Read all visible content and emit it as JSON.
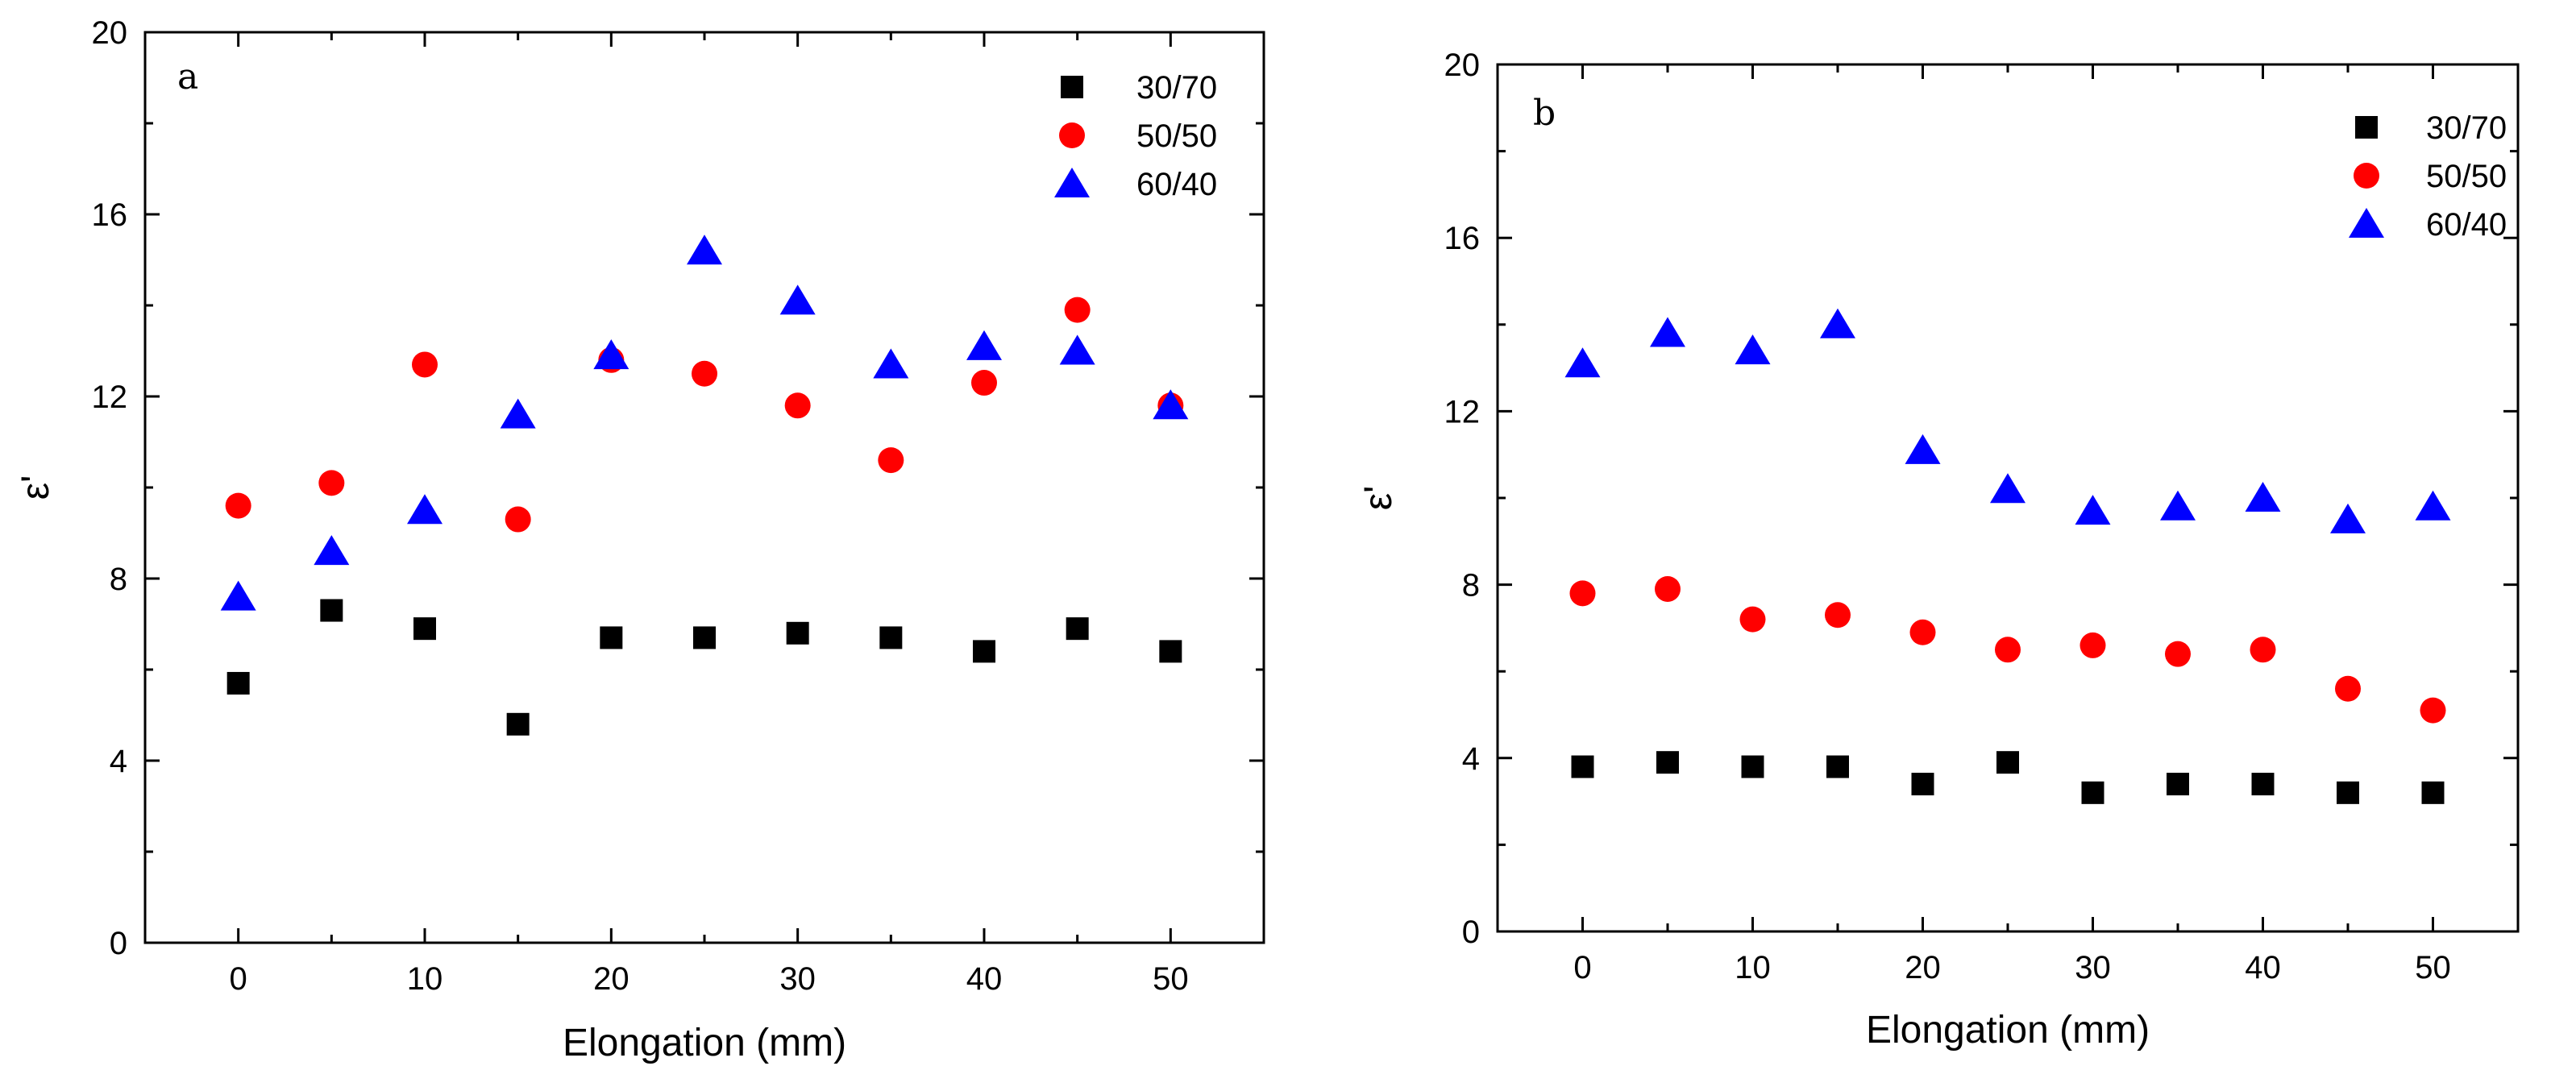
{
  "chart_data": [
    {
      "type": "scatter",
      "panel_label": "a",
      "xlabel": "Elongation (mm)",
      "ylabel": "ε'",
      "xlim": [
        -5,
        55
      ],
      "ylim": [
        0,
        20
      ],
      "xticks": [
        0,
        10,
        20,
        30,
        40,
        50
      ],
      "yticks": [
        0,
        4,
        8,
        12,
        16,
        20
      ],
      "legend_position": "top-right",
      "x": [
        0,
        5,
        10,
        15,
        20,
        25,
        30,
        35,
        40,
        45,
        50
      ],
      "series": [
        {
          "name": "30/70",
          "marker": "square",
          "color": "#000000",
          "values": [
            5.7,
            7.3,
            6.9,
            4.8,
            6.7,
            6.7,
            6.8,
            6.7,
            6.4,
            6.9,
            6.4
          ]
        },
        {
          "name": "50/50",
          "marker": "circle",
          "color": "#ff0000",
          "values": [
            9.6,
            10.1,
            12.7,
            9.3,
            12.8,
            12.5,
            11.8,
            10.6,
            12.3,
            13.9,
            11.8
          ]
        },
        {
          "name": "60/40",
          "marker": "triangle",
          "color": "#0000ff",
          "values": [
            7.6,
            8.6,
            9.5,
            11.6,
            12.9,
            15.2,
            14.1,
            12.7,
            13.1,
            13.0,
            11.8
          ]
        }
      ]
    },
    {
      "type": "scatter",
      "panel_label": "b",
      "xlabel": "Elongation (mm)",
      "ylabel": "ε'",
      "xlim": [
        -5,
        55
      ],
      "ylim": [
        0,
        20
      ],
      "xticks": [
        0,
        10,
        20,
        30,
        40,
        50
      ],
      "yticks": [
        0,
        4,
        8,
        12,
        16,
        20
      ],
      "legend_position": "top-right",
      "x": [
        0,
        5,
        10,
        15,
        20,
        25,
        30,
        35,
        40,
        45,
        50
      ],
      "series": [
        {
          "name": "30/70",
          "marker": "square",
          "color": "#000000",
          "values": [
            3.8,
            3.9,
            3.8,
            3.8,
            3.4,
            3.9,
            3.2,
            3.4,
            3.4,
            3.2,
            3.2
          ]
        },
        {
          "name": "50/50",
          "marker": "circle",
          "color": "#ff0000",
          "values": [
            7.8,
            7.9,
            7.2,
            7.3,
            6.9,
            6.5,
            6.6,
            6.4,
            6.5,
            5.6,
            5.1
          ]
        },
        {
          "name": "60/40",
          "marker": "triangle",
          "color": "#0000ff",
          "values": [
            13.1,
            13.8,
            13.4,
            14.0,
            11.1,
            10.2,
            9.7,
            9.8,
            10.0,
            9.5,
            9.8
          ]
        }
      ]
    }
  ]
}
